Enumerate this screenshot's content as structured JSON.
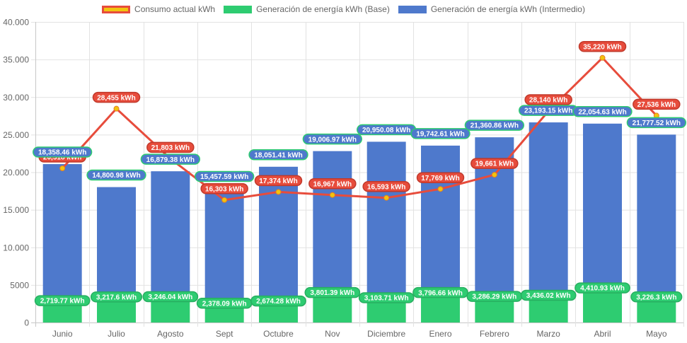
{
  "chart_data": {
    "type": "bar",
    "stacked": true,
    "title": "",
    "xlabel": "",
    "ylabel": "",
    "ylim": [
      0,
      40000
    ],
    "yticks": [
      "0",
      "5000",
      "10.000",
      "15.000",
      "20.000",
      "25.000",
      "30.000",
      "35.000",
      "40.000"
    ],
    "ytick_values": [
      0,
      5000,
      10000,
      15000,
      20000,
      25000,
      30000,
      35000,
      40000
    ],
    "grid": true,
    "legend_position": "top",
    "categories": [
      "Junio",
      "Julio",
      "Agosto",
      "Sept",
      "Octubre",
      "Nov",
      "Diciembre",
      "Enero",
      "Febrero",
      "Marzo",
      "Abril",
      "Mayo"
    ],
    "series": [
      {
        "name": "Consumo actual kWh",
        "type": "line",
        "color": "#e74c3c",
        "point_color": "#f1c40f",
        "values": [
          20518,
          28455,
          21803,
          16303,
          17374,
          16967,
          16593,
          17769,
          19661,
          28140,
          35220,
          27536
        ],
        "labels": [
          "20,518 kWh",
          "28,455 kWh",
          "21,803 kWh",
          "16,303 kWh",
          "17,374 kWh",
          "16,967 kWh",
          "16,593 kWh",
          "17,769 kWh",
          "19,661 kWh",
          "28,140 kWh",
          "35,220 kWh",
          "27,536 kWh"
        ]
      },
      {
        "name": "Generación de energía kWh (Base)",
        "type": "bar",
        "color": "#2ecc71",
        "values": [
          2719.77,
          3217.6,
          3246.04,
          2378.09,
          2674.28,
          3801.39,
          3103.71,
          3796.66,
          3286.29,
          3436.02,
          4410.93,
          3226.3
        ],
        "labels": [
          "2,719.77 kWh",
          "3,217.6 kWh",
          "3,246.04 kWh",
          "2,378.09 kWh",
          "2,674.28 kWh",
          "3,801.39 kWh",
          "3,103.71 kWh",
          "3,796.66 kWh",
          "3,286.29 kWh",
          "3,436.02 kWh",
          "4,410.93 kWh",
          "3,226.3 kWh"
        ]
      },
      {
        "name": "Generación de energía kWh (Intermedio)",
        "type": "bar",
        "color": "#4e79cc",
        "values": [
          18358.46,
          14800.98,
          16879.38,
          15457.59,
          18051.41,
          19006.97,
          20950.08,
          19742.61,
          21360.86,
          23193.15,
          22054.63,
          21777.52
        ],
        "labels": [
          "18,358.46 kWh",
          "14,800.98 kWh",
          "16,879.38 kWh",
          "15,457.59 kWh",
          "18,051.41 kWh",
          "19,006.97 kWh",
          "20,950.08 kWh",
          "19,742.61 kWh",
          "21,360.86 kWh",
          "23,193.15 kWh",
          "22,054.63 kWh",
          "21,777.52 kWh"
        ]
      }
    ]
  },
  "legend": [
    {
      "label": "Consumo actual kWh",
      "fill": "#f1c40f",
      "border": "#e74c3c"
    },
    {
      "label": "Generación de energía kWh (Base)",
      "fill": "#2ecc71",
      "border": "#2ecc71"
    },
    {
      "label": "Generación de energía kWh (Intermedio)",
      "fill": "#4e79cc",
      "border": "#4e79cc"
    }
  ]
}
